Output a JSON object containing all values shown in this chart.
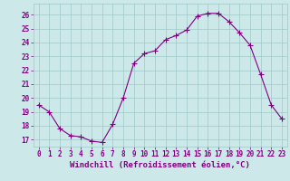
{
  "x": [
    0,
    1,
    2,
    3,
    4,
    5,
    6,
    7,
    8,
    9,
    10,
    11,
    12,
    13,
    14,
    15,
    16,
    17,
    18,
    19,
    20,
    21,
    22,
    23
  ],
  "y": [
    19.5,
    19.0,
    17.8,
    17.3,
    17.2,
    16.9,
    16.8,
    18.1,
    20.0,
    22.5,
    23.2,
    23.4,
    24.2,
    24.5,
    24.9,
    25.9,
    26.1,
    26.1,
    25.5,
    24.7,
    23.8,
    21.7,
    19.5,
    18.5
  ],
  "line_color": "#800080",
  "marker": "+",
  "marker_size": 4,
  "linewidth": 0.8,
  "bg_color": "#cce8e8",
  "grid_color": "#9ec8c8",
  "xlabel": "Windchill (Refroidissement éolien,°C)",
  "xlabel_fontsize": 6.5,
  "ylabel_ticks": [
    17,
    18,
    19,
    20,
    21,
    22,
    23,
    24,
    25,
    26
  ],
  "xtick_labels": [
    "0",
    "1",
    "2",
    "3",
    "4",
    "5",
    "6",
    "7",
    "8",
    "9",
    "10",
    "11",
    "12",
    "13",
    "14",
    "15",
    "16",
    "17",
    "18",
    "19",
    "20",
    "21",
    "22",
    "23"
  ],
  "ylim": [
    16.5,
    26.8
  ],
  "xlim": [
    -0.5,
    23.5
  ],
  "tick_fontsize": 5.5,
  "title": ""
}
